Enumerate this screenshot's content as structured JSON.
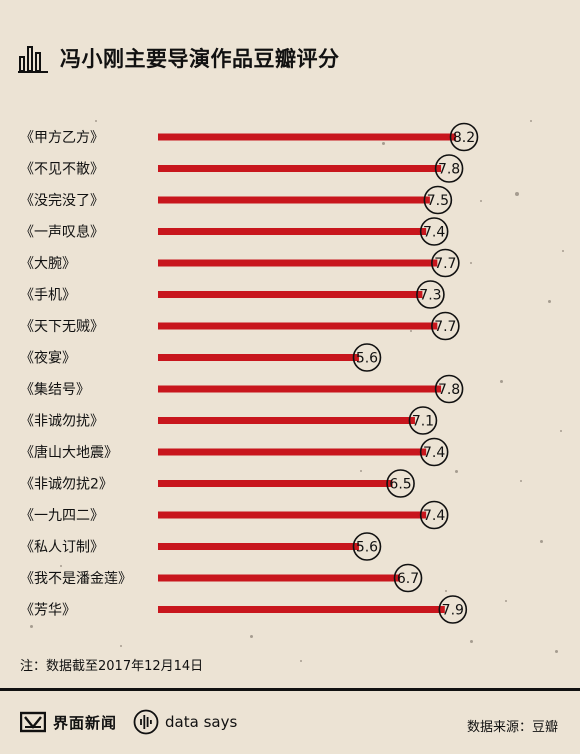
{
  "title": "冯小刚主要导演作品豆瓣评分",
  "footnote": "注：数据截至2017年12月14日",
  "brand": "界面新闻",
  "data_says": "data says",
  "source": "数据来源：豆瓣",
  "colors": {
    "bar": "#c8161d",
    "background": "#ece3d4",
    "text": "#111111"
  },
  "chart_data": {
    "type": "bar",
    "orientation": "horizontal",
    "categories": [
      "《甲方乙方》",
      "《不见不散》",
      "《没完没了》",
      "《一声叹息》",
      "《大腕》",
      "《手机》",
      "《天下无贼》",
      "《夜宴》",
      "《集结号》",
      "《非诚勿扰》",
      "《唐山大地震》",
      "《非诚勿扰2》",
      "《一九四二》",
      "《私人订制》",
      "《我不是潘金莲》",
      "《芳华》"
    ],
    "values": [
      8.2,
      7.8,
      7.5,
      7.4,
      7.7,
      7.3,
      7.7,
      5.6,
      7.8,
      7.1,
      7.4,
      6.5,
      7.4,
      5.6,
      6.7,
      7.9
    ],
    "title": "冯小刚主要导演作品豆瓣评分",
    "xlabel": "",
    "ylabel": "",
    "grid": false,
    "legend": "none",
    "data_labels": true
  }
}
